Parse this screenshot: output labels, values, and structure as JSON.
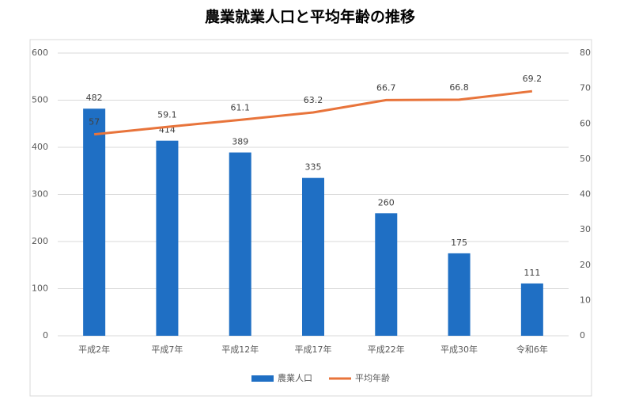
{
  "chart_data": {
    "type": "bar",
    "title": "農業就業人口と平均年齢の推移",
    "categories": [
      "平成2年",
      "平成7年",
      "平成12年",
      "平成17年",
      "平成22年",
      "平成30年",
      "令和6年"
    ],
    "series": [
      {
        "name": "農業人口",
        "color": "#1f6fc4",
        "values": [
          482,
          414,
          389,
          335,
          260,
          175,
          111
        ]
      },
      {
        "name": "平均年齢",
        "color": "#e8743b",
        "type": "line",
        "axis": "y2",
        "values": [
          57,
          59.1,
          61.1,
          63.2,
          66.7,
          66.8,
          69.2
        ]
      }
    ],
    "ylim": [
      0,
      600
    ],
    "yticks": [
      0,
      100,
      200,
      300,
      400,
      500,
      600
    ],
    "y2lim": [
      0,
      80
    ],
    "y2ticks": [
      0,
      10,
      20,
      30,
      40,
      50,
      60,
      70,
      80
    ],
    "grid": true,
    "legend": "bottom"
  }
}
